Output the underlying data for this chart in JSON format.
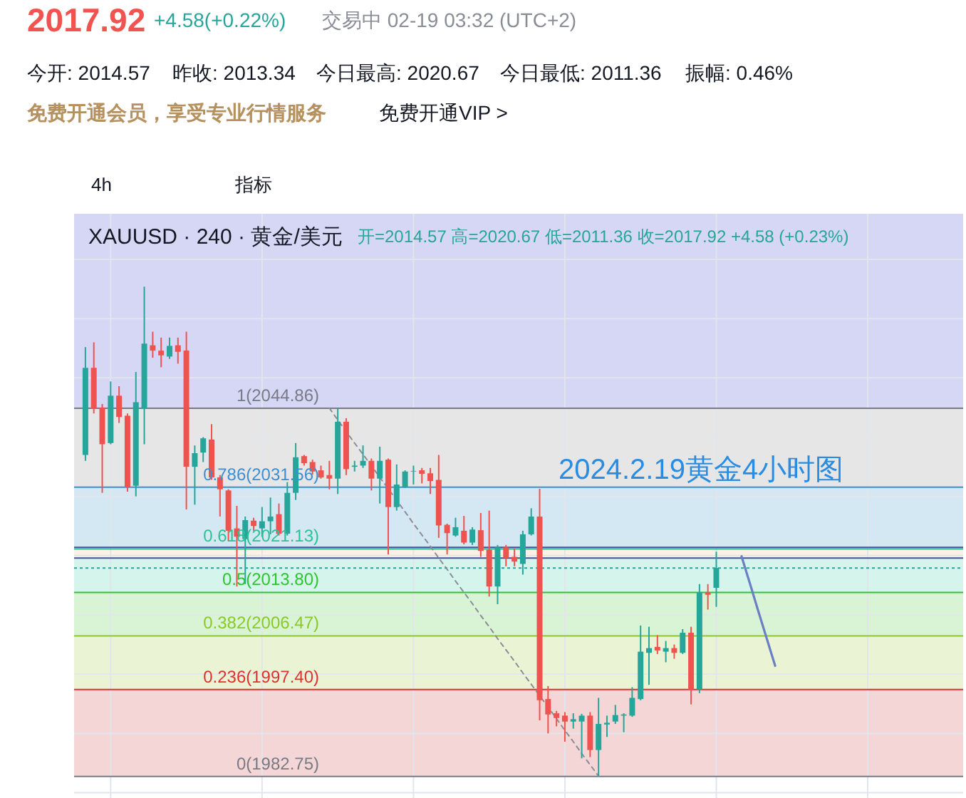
{
  "chart_data": {
    "type": "candlestick",
    "title": "XAUUSD · 240 · 黄金/美元",
    "subtitle": "开=2014.57  高=2020.67  低=2011.36  收=2017.92  +4.58 (+0.23%)",
    "categories": [
      null,
      null,
      null,
      null,
      null,
      null,
      null,
      null,
      null,
      null,
      null,
      null,
      null,
      null,
      null,
      null,
      null,
      null,
      null,
      null,
      null,
      null,
      null,
      null,
      null,
      null,
      null,
      null,
      null,
      null,
      null,
      null,
      null,
      null,
      null,
      null,
      null,
      null,
      null,
      null,
      null,
      null,
      null,
      null,
      null,
      null,
      null,
      null,
      null,
      null,
      null,
      null,
      null,
      null,
      null,
      null,
      null,
      null,
      null,
      null,
      null,
      null,
      null,
      null,
      null,
      null,
      null,
      null,
      null,
      null,
      null,
      null,
      null,
      null,
      null,
      null,
      null,
      null,
      null,
      null,
      null,
      null,
      null,
      null,
      null,
      null,
      null,
      null,
      null,
      null,
      null,
      null,
      null,
      null,
      null,
      null,
      null,
      null,
      null,
      null,
      null,
      null,
      null,
      null
    ],
    "ohlc": [
      [
        2037.0,
        2055.2,
        2036.0,
        2051.7
      ],
      [
        2051.7,
        2056.0,
        2044.0,
        2044.8
      ],
      [
        2045.0,
        2045.6,
        2030.6,
        2038.8
      ],
      [
        2039.0,
        2049.4,
        2038.8,
        2047.0
      ],
      [
        2047.0,
        2048.6,
        2042.4,
        2043.4
      ],
      [
        2043.6,
        2044.0,
        2030.8,
        2031.6
      ],
      [
        2031.8,
        2051.0,
        2030.0,
        2045.9
      ],
      [
        2044.8,
        2065.4,
        2038.8,
        2055.8
      ],
      [
        2055.5,
        2057.8,
        2053.4,
        2054.6
      ],
      [
        2054.6,
        2056.8,
        2051.8,
        2053.8
      ],
      [
        2053.6,
        2056.8,
        2053.2,
        2055.4
      ],
      [
        2055.5,
        2056.8,
        2052.4,
        2054.4
      ],
      [
        2054.6,
        2057.8,
        2027.8,
        2035.0
      ],
      [
        2035.0,
        2038.6,
        2028.6,
        2037.3
      ],
      [
        2037.4,
        2040.0,
        2035.8,
        2039.8
      ],
      [
        2039.6,
        2042.2,
        2032.8,
        2033.2
      ],
      [
        2033.2,
        2033.6,
        2026.6,
        2031.2
      ],
      [
        2031.0,
        2031.2,
        2022.4,
        2024.2
      ],
      [
        2024.6,
        2028.4,
        2014.8,
        2023.2
      ],
      [
        2022.8,
        2026.6,
        2015.2,
        2026.0
      ],
      [
        2025.9,
        2026.4,
        2024.2,
        2025.0
      ],
      [
        2024.6,
        2028.2,
        2023.2,
        2025.8
      ],
      [
        2025.8,
        2029.8,
        2023.6,
        2026.6
      ],
      [
        2027.0,
        2028.8,
        2023.4,
        2023.7
      ],
      [
        2023.7,
        2032.4,
        2023.4,
        2030.6
      ],
      [
        2030.6,
        2039.0,
        2029.4,
        2036.6
      ],
      [
        2036.8,
        2037.0,
        2035.2,
        2035.6
      ],
      [
        2035.8,
        2036.2,
        2033.7,
        2034.2
      ],
      [
        2034.4,
        2035.2,
        2033.0,
        2033.2
      ],
      [
        2033.6,
        2036.0,
        2031.2,
        2033.0
      ],
      [
        2033.0,
        2044.86,
        2030.4,
        2042.6
      ],
      [
        2042.6,
        2043.2,
        2033.6,
        2034.6
      ],
      [
        2035.0,
        2036.0,
        2034.2,
        2035.2
      ],
      [
        2035.2,
        2038.6,
        2034.8,
        2036.0
      ],
      [
        2036.0,
        2036.4,
        2031.0,
        2033.0
      ],
      [
        2033.0,
        2038.4,
        2028.8,
        2036.0
      ],
      [
        2036.2,
        2036.4,
        2020.2,
        2028.2
      ],
      [
        2028.2,
        2035.4,
        2027.6,
        2032.0
      ],
      [
        2031.6,
        2034.4,
        2031.4,
        2034.2
      ],
      [
        2034.2,
        2035.2,
        2032.0,
        2034.3
      ],
      [
        2034.4,
        2034.8,
        2032.2,
        2033.8
      ],
      [
        2033.9,
        2034.8,
        2030.4,
        2032.6
      ],
      [
        2032.8,
        2037.0,
        2023.0,
        2025.1
      ],
      [
        2025.2,
        2025.4,
        2020.2,
        2023.8
      ],
      [
        2023.4,
        2026.4,
        2023.2,
        2024.8
      ],
      [
        2024.2,
        2026.7,
        2021.9,
        2022.2
      ],
      [
        2022.2,
        2024.8,
        2021.8,
        2024.4
      ],
      [
        2024.3,
        2027.2,
        2019.8,
        2020.8
      ],
      [
        2021.0,
        2027.6,
        2013.1,
        2014.8
      ],
      [
        2014.8,
        2021.8,
        2011.8,
        2021.4
      ],
      [
        2021.4,
        2021.8,
        2018.2,
        2019.6
      ],
      [
        2019.8,
        2021.2,
        2018.2,
        2019.0
      ],
      [
        2018.6,
        2024.2,
        2016.8,
        2023.6
      ],
      [
        2023.6,
        2028.0,
        2023.4,
        2026.6
      ],
      [
        2026.6,
        2031.3,
        1992.2,
        1995.6
      ],
      [
        1995.8,
        1998.0,
        1990.0,
        1993.2
      ],
      [
        1993.4,
        1993.8,
        1991.2,
        1992.6
      ],
      [
        1993.0,
        1993.6,
        1988.6,
        1992.0
      ],
      [
        1992.0,
        1993.4,
        1990.8,
        1992.4
      ],
      [
        1992.0,
        1993.3,
        1985.8,
        1993.0
      ],
      [
        1993.0,
        1993.6,
        1986.0,
        1987.2
      ],
      [
        1987.2,
        1996.0,
        1982.75,
        1991.6
      ],
      [
        1991.5,
        1993.0,
        1989.4,
        1991.8
      ],
      [
        1992.0,
        1994.8,
        1991.6,
        1993.1
      ],
      [
        1993.0,
        1993.4,
        1990.2,
        1993.2
      ],
      [
        1993.0,
        1997.8,
        1992.8,
        1996.0
      ],
      [
        1995.8,
        2008.2,
        1995.6,
        2003.8
      ],
      [
        2003.6,
        2008.0,
        1998.2,
        2004.4
      ],
      [
        2004.6,
        2006.6,
        2003.4,
        2004.0
      ],
      [
        2003.8,
        2005.6,
        2002.0,
        2004.4
      ],
      [
        2004.4,
        2005.0,
        2002.6,
        2003.6
      ],
      [
        2003.6,
        2007.6,
        2003.4,
        2007.0
      ],
      [
        2007.0,
        2008.0,
        1994.9,
        1997.4
      ],
      [
        1997.4,
        2015.2,
        1996.8,
        2013.8
      ],
      [
        2013.8,
        2015.2,
        2010.9,
        2013.4
      ],
      [
        2014.57,
        2020.67,
        2011.36,
        2017.92
      ],
      null,
      null,
      null,
      null,
      null,
      null,
      null,
      null,
      null,
      null,
      null,
      null,
      null,
      null,
      null,
      null,
      null,
      null,
      null,
      null,
      null,
      null,
      null,
      null,
      null,
      null,
      null,
      null
    ],
    "colors": [
      "#26a69a",
      "#ef5350",
      "#ef5350",
      "#26a69a",
      "#ef5350",
      "#ef5350",
      "#26a69a",
      "#26a69a",
      "#ef5350",
      "#ef5350",
      "#26a69a",
      "#ef5350",
      "#ef5350",
      "#26a69a",
      "#26a69a",
      "#ef5350",
      "#ef5350",
      "#ef5350",
      "#ef5350",
      "#26a69a",
      "#ef5350",
      "#26a69a",
      "#26a69a",
      "#ef5350",
      "#26a69a",
      "#26a69a",
      "#ef5350",
      "#ef5350",
      "#ef5350",
      "#ef5350",
      "#26a69a",
      "#ef5350",
      "#26a69a",
      "#26a69a",
      "#ef5350",
      "#26a69a",
      "#ef5350",
      "#26a69a",
      "#26a69a",
      "#26a69a",
      "#ef5350",
      "#ef5350",
      "#ef5350",
      "#ef5350",
      "#26a69a",
      "#ef5350",
      "#26a69a",
      "#ef5350",
      "#ef5350",
      "#26a69a",
      "#ef5350",
      "#ef5350",
      "#26a69a",
      "#26a69a",
      "#ef5350",
      "#ef5350",
      "#ef5350",
      "#ef5350",
      "#26a69a",
      "#26a69a",
      "#ef5350",
      "#26a69a",
      "#26a69a",
      "#26a69a",
      "#26a69a",
      "#26a69a",
      "#26a69a",
      "#26a69a",
      "#ef5350",
      "#26a69a",
      "#ef5350",
      "#26a69a",
      "#ef5350",
      "#26a69a",
      "#ef5350",
      "#26a69a",
      null,
      null,
      null,
      null,
      null,
      null,
      null,
      null,
      null,
      null,
      null,
      null,
      null,
      null,
      null,
      null,
      null,
      null,
      null,
      null,
      null,
      null,
      null,
      null,
      null,
      null,
      null,
      null
    ],
    "series": [
      {
        "type": "line",
        "color": "#8a8d96",
        "line_style": "dashed",
        "values": [
          null,
          null,
          null,
          null,
          null,
          null,
          null,
          null,
          null,
          null,
          null,
          null,
          null,
          null,
          null,
          null,
          null,
          null,
          null,
          null,
          null,
          null,
          null,
          null,
          null,
          null,
          null,
          null,
          null,
          2044.9,
          2042.9,
          null,
          2039.0,
          2037.1,
          null,
          null,
          null,
          null,
          2027.4,
          2025.4,
          2023.5,
          2021.6,
          2019.6,
          2017.7,
          2015.7,
          2013.8,
          2011.9,
          2009.9,
          2008.0,
          2006.0,
          2004.1,
          2002.2,
          2000.2,
          1998.3,
          null,
          null,
          1992.5,
          1990.5,
          1988.6,
          1986.6,
          1984.7,
          1982.8,
          null,
          null,
          null,
          null,
          null,
          null,
          null,
          null,
          null,
          null,
          null,
          null,
          null,
          null,
          null,
          null,
          null,
          null,
          null,
          null,
          null,
          null,
          null,
          null,
          null,
          null,
          null,
          null,
          null,
          null,
          null,
          null,
          null,
          null,
          null,
          null,
          null,
          null,
          null,
          null,
          null,
          null
        ]
      },
      {
        "type": "line",
        "color": "#6a7fc4",
        "values": [
          null,
          null,
          null,
          null,
          null,
          null,
          null,
          null,
          null,
          null,
          null,
          null,
          null,
          null,
          null,
          null,
          null,
          null,
          null,
          null,
          null,
          null,
          null,
          null,
          null,
          null,
          null,
          null,
          null,
          null,
          null,
          null,
          null,
          null,
          null,
          null,
          null,
          null,
          null,
          null,
          null,
          null,
          null,
          null,
          null,
          null,
          null,
          null,
          null,
          null,
          null,
          null,
          null,
          null,
          null,
          null,
          null,
          null,
          null,
          null,
          null,
          null,
          null,
          null,
          null,
          null,
          null,
          null,
          null,
          null,
          null,
          null,
          null,
          null,
          null,
          null,
          null,
          null,
          2019.9,
          2015.3,
          2010.6,
          2006.0,
          2001.4,
          null,
          null,
          null,
          null,
          null,
          null,
          null,
          null,
          null,
          null,
          null,
          null,
          null,
          null,
          null,
          null,
          null,
          null,
          null,
          null,
          null
        ]
      }
    ],
    "ref_lines": [
      {
        "axis": "y",
        "value": 2044.86,
        "label": "1(2044.86)",
        "color": "#787b86"
      },
      {
        "axis": "y",
        "value": 2031.56,
        "label": "0.786(2031.56)",
        "color": "#3d8fd1"
      },
      {
        "axis": "y",
        "value": 2021.13,
        "label": "0.618(2021.13)",
        "color": "#2cc295"
      },
      {
        "axis": "y",
        "value": 2013.8,
        "label": "0.5(2013.80)",
        "color": "#2ec52e"
      },
      {
        "axis": "y",
        "value": 2006.47,
        "label": "0.382(2006.47)",
        "color": "#8cc82a"
      },
      {
        "axis": "y",
        "value": 1997.4,
        "label": "0.236(1997.40)",
        "color": "#e03131"
      },
      {
        "axis": "y",
        "value": 1982.75,
        "label": "0(1982.75)",
        "color": "#787b86"
      },
      {
        "axis": "y",
        "value": 2021.4,
        "color": "#4152a3"
      },
      {
        "axis": "y",
        "value": 2019.6,
        "color": "#4152a3"
      },
      {
        "axis": "y",
        "value": 2017.92,
        "color": "#26a69a",
        "line_style": "dotted"
      }
    ],
    "bands": [
      {
        "axis": "y",
        "from": 2044.86,
        "to": 2077.7,
        "color": "#d6d6f5"
      },
      {
        "axis": "y",
        "from": 2031.56,
        "to": 2044.86,
        "color": "#e6e6e6"
      },
      {
        "axis": "y",
        "from": 2021.13,
        "to": 2031.56,
        "color": "#d4e8f4"
      },
      {
        "axis": "y",
        "from": 2013.8,
        "to": 2021.13,
        "color": "#d4f4ec"
      },
      {
        "axis": "y",
        "from": 2006.47,
        "to": 2013.8,
        "color": "#d8f4d4"
      },
      {
        "axis": "y",
        "from": 1997.4,
        "to": 2006.47,
        "color": "#eaf4d4"
      },
      {
        "axis": "y",
        "from": 1982.75,
        "to": 1997.4,
        "color": "#f4d6d6"
      },
      {
        "axis": "y",
        "from": 2019.6,
        "to": 2021.4,
        "color": "#fbf1e5"
      }
    ],
    "annotations": [
      "2024.2.19黄金4小时图",
      "2017.92",
      "+4.58(+0.22%)",
      "交易中 02-19 03:32 (UTC+2)",
      "今开: 2014.57",
      "昨收: 2013.34",
      "今日最高: 2020.67",
      "今日最低: 2011.36",
      "振幅: 0.46%",
      "免费开通会员，享受专业行情服务",
      "免费开通VIP >",
      "4h",
      "指标"
    ],
    "grid": true,
    "ylim": [
      1979.1,
      2077.7
    ],
    "yticks": [
      {
        "value": 1980,
        "label": null
      },
      {
        "value": 1990,
        "label": null
      },
      {
        "value": 2000,
        "label": null
      },
      {
        "value": 2010,
        "label": null
      },
      {
        "value": 2020,
        "label": null
      },
      {
        "value": 2030,
        "label": null
      },
      {
        "value": 2040,
        "label": null
      },
      {
        "value": 2050,
        "label": null
      },
      {
        "value": 2060,
        "label": null
      },
      {
        "value": 2070,
        "label": null
      }
    ]
  }
}
